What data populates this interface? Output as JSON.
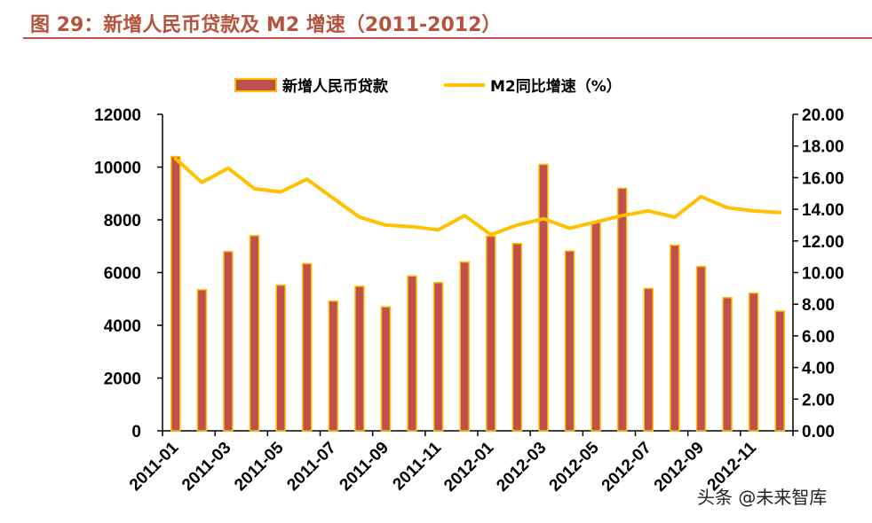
{
  "figure": {
    "title": "图 29：新增人民币贷款及 M2 增速（2011-2012）"
  },
  "watermark": "头条 @未来智库",
  "chart_data": {
    "type": "bar+line",
    "categories": [
      "2011-01",
      "2011-02",
      "2011-03",
      "2011-04",
      "2011-05",
      "2011-06",
      "2011-07",
      "2011-08",
      "2011-09",
      "2011-10",
      "2011-11",
      "2011-12",
      "2012-01",
      "2012-02",
      "2012-03",
      "2012-04",
      "2012-05",
      "2012-06",
      "2012-07",
      "2012-08",
      "2012-09",
      "2012-10",
      "2012-11",
      "2012-12"
    ],
    "x_tick_labels": [
      "2011-01",
      "2011-03",
      "2011-05",
      "2011-07",
      "2011-09",
      "2011-11",
      "2012-01",
      "2012-03",
      "2012-05",
      "2012-07",
      "2012-09",
      "2012-11"
    ],
    "series": [
      {
        "name": "新增人民币贷款",
        "type": "bar",
        "axis": "left",
        "values": [
          10400,
          5350,
          6800,
          7400,
          5520,
          6340,
          4920,
          5480,
          4700,
          5870,
          5620,
          6400,
          7380,
          7100,
          10100,
          6820,
          7900,
          9200,
          5400,
          7040,
          6230,
          5050,
          5220,
          4540
        ]
      },
      {
        "name": "M2同比增速（%）",
        "type": "line",
        "axis": "right",
        "values": [
          17.2,
          15.7,
          16.6,
          15.3,
          15.1,
          15.9,
          14.7,
          13.5,
          13.0,
          12.9,
          12.7,
          13.6,
          12.4,
          13.0,
          13.4,
          12.8,
          13.2,
          13.6,
          13.9,
          13.5,
          14.8,
          14.1,
          13.9,
          13.8
        ]
      }
    ],
    "y_left": {
      "range": [
        0,
        12000
      ],
      "ticks": [
        "0",
        "2000",
        "4000",
        "6000",
        "8000",
        "10000",
        "12000"
      ]
    },
    "y_right": {
      "range": [
        0,
        20
      ],
      "ticks": [
        "0.00",
        "2.00",
        "4.00",
        "6.00",
        "8.00",
        "10.00",
        "12.00",
        "14.00",
        "16.00",
        "18.00",
        "20.00"
      ]
    },
    "legend": {
      "position": "top"
    },
    "grid": false,
    "colors": {
      "bar_fill": "#c0504d",
      "bar_edge": "#ffc000",
      "line": "#ffc000",
      "axis": "#000000"
    }
  }
}
